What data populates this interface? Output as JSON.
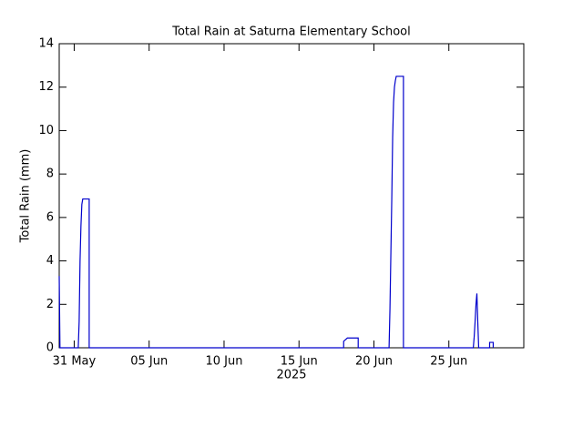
{
  "chart_data": {
    "type": "line",
    "title": "Total Rain at Saturna Elementary School",
    "ylabel": "Total Rain (mm)",
    "xlabel": "2025",
    "x": [
      0,
      0.05,
      1.27,
      1.33,
      1.39,
      1.45,
      1.51,
      1.57,
      2.0,
      2.0,
      18.98,
      18.98,
      19.23,
      19.95,
      19.95,
      22.01,
      22.07,
      22.13,
      22.19,
      22.25,
      22.31,
      22.37,
      22.43,
      22.49,
      22.97,
      22.97,
      27.63,
      27.69,
      27.75,
      27.81,
      27.87,
      27.93,
      27.99,
      28.72,
      28.72,
      28.96,
      28.96
    ],
    "series": [
      {
        "name": "Total Rain",
        "color": "#0000cc",
        "values": [
          3.3,
          0,
          0,
          1.2,
          4.0,
          5.6,
          6.6,
          6.85,
          6.85,
          0,
          0,
          0.3,
          0.45,
          0.45,
          0,
          0,
          1.8,
          4.3,
          6.8,
          9.7,
          11.3,
          12.0,
          12.3,
          12.5,
          12.5,
          0,
          0,
          0.5,
          1.2,
          2.0,
          2.5,
          1.2,
          0,
          0,
          0.25,
          0.25,
          0
        ]
      }
    ],
    "xlim": [
      0,
      31
    ],
    "xticks": [
      {
        "value": 1,
        "label": "31 May"
      },
      {
        "value": 6,
        "label": "05 Jun"
      },
      {
        "value": 11,
        "label": "10 Jun"
      },
      {
        "value": 16,
        "label": "15 Jun"
      },
      {
        "value": 21,
        "label": "20 Jun"
      },
      {
        "value": 26,
        "label": "25 Jun"
      }
    ],
    "ylim": [
      0,
      14
    ],
    "yticks": [
      0,
      2,
      4,
      6,
      8,
      10,
      12,
      14
    ]
  }
}
